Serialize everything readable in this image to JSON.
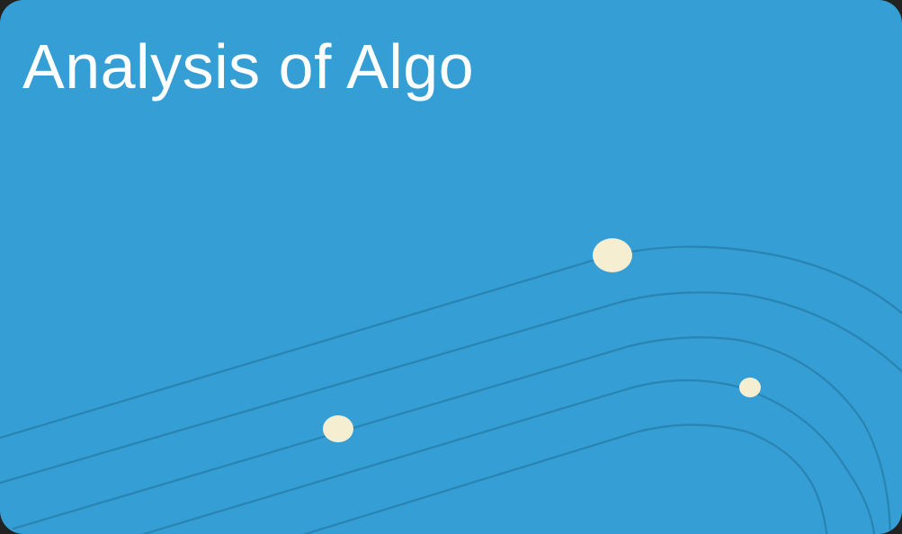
{
  "card": {
    "title": "Analysis of Algo",
    "background_color": "#349ED5",
    "track_color": "#2A84B2",
    "dot_color": "#F5EED0",
    "illustration": "curved-orbit-lines-with-dots"
  }
}
